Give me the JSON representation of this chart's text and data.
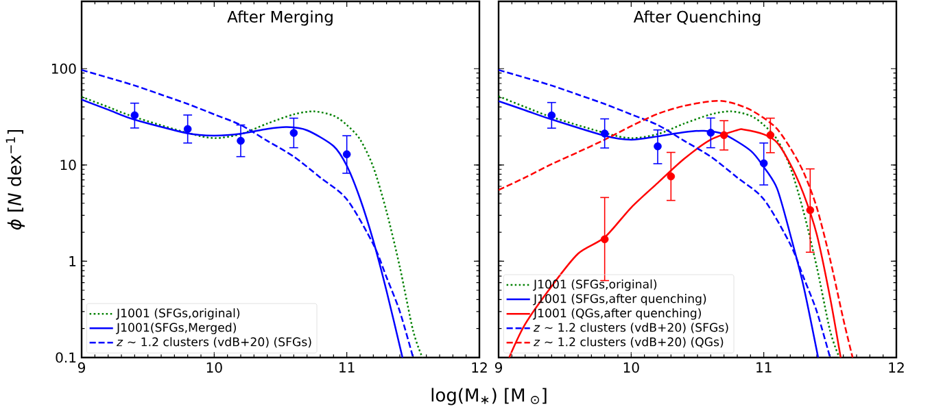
{
  "chart_data": [
    {
      "type": "line",
      "title": "After Merging",
      "xlabel": "log(M$_{∗}$) [M$_{ ⊙}$]",
      "ylabel": "*ϕ* [*N* dex$^{−1}$]",
      "xlim": [
        9,
        12
      ],
      "ylim": [
        0.1,
        500
      ],
      "xticks": [
        9,
        10,
        11,
        12
      ],
      "yticks": [
        0.1,
        1,
        10,
        100
      ],
      "log": "y",
      "legend": "bottom left",
      "series": [
        {
          "name": "J1001 (SFGs,original)",
          "color": "#008000",
          "line_style": "dotted",
          "x": [
            9.0,
            9.2,
            9.4,
            9.8,
            10.0,
            10.2,
            10.4,
            10.6,
            10.75,
            10.9,
            11.0,
            11.1,
            11.2,
            11.3,
            11.4,
            11.5,
            11.57
          ],
          "values": [
            51,
            40,
            31.4,
            21.5,
            19,
            20.9,
            26.9,
            33.5,
            36,
            32.5,
            26,
            18.4,
            9.5,
            3.27,
            0.87,
            0.19,
            0.1
          ]
        },
        {
          "name": "J1001(SFGs,Merged)",
          "color": "#0000ff",
          "line_style": "solid",
          "x": [
            9.0,
            9.2,
            9.4,
            9.8,
            10.0,
            10.2,
            10.4,
            10.55,
            10.7,
            10.9,
            11.0,
            11.1,
            11.2,
            11.3,
            11.42
          ],
          "values": [
            47.7,
            37.5,
            29.5,
            21.3,
            20.2,
            21.1,
            23.7,
            24.7,
            22.9,
            15.7,
            9.8,
            4.47,
            1.63,
            0.49,
            0.1
          ]
        },
        {
          "name": "*z* ∼ 1.2 clusters (vdB+20) (SFGs)",
          "color": "#0000ff",
          "line_style": "dashed",
          "x": [
            9.0,
            9.2,
            9.4,
            9.6,
            9.8,
            10.0,
            10.2,
            10.4,
            10.6,
            10.8,
            11.0,
            11.2,
            11.3,
            11.4,
            11.5
          ],
          "values": [
            97,
            80.7,
            66.8,
            53.7,
            43,
            33.5,
            26,
            17.8,
            12.2,
            7.4,
            4.4,
            1.5,
            0.68,
            0.3,
            0.1
          ]
        },
        {
          "type": "scatter",
          "color": "#0000ff",
          "marker": "circle",
          "x": [
            9.4,
            9.8,
            10.2,
            10.6,
            11.0
          ],
          "values": [
            32.8,
            23.6,
            17.8,
            21.5,
            12.9
          ],
          "errors": [
            [
              24.2,
              43.8
            ],
            [
              16.9,
              33
            ],
            [
              12.2,
              26
            ],
            [
              15.1,
              30.6
            ],
            [
              8.2,
              20.1
            ]
          ]
        }
      ]
    },
    {
      "type": "line",
      "title": "After Quenching",
      "xlim": [
        9,
        12
      ],
      "ylim": [
        0.1,
        500
      ],
      "xticks": [
        9,
        10,
        11,
        12
      ],
      "yticks": [
        0.1,
        1,
        10,
        100
      ],
      "log": "y",
      "legend": "bottom left",
      "tick_labels": "x",
      "series": [
        {
          "name": "J1001 (SFGs,original)",
          "color": "#008000",
          "line_style": "dotted",
          "x": [
            9.0,
            9.2,
            9.4,
            9.8,
            10.0,
            10.2,
            10.4,
            10.6,
            10.75,
            10.9,
            11.0,
            11.1,
            11.2,
            11.3,
            11.4,
            11.5,
            11.57
          ],
          "values": [
            51.7,
            40,
            31.4,
            21.5,
            19,
            20.9,
            26.9,
            33.5,
            36,
            32.5,
            26,
            18.4,
            9.5,
            3.27,
            0.87,
            0.19,
            0.1
          ]
        },
        {
          "name": "J1001 (SFGs,after quenching)",
          "color": "#0000ff",
          "line_style": "solid",
          "x": [
            9.0,
            9.2,
            9.4,
            9.8,
            10.0,
            10.2,
            10.4,
            10.55,
            10.7,
            10.9,
            11.0,
            11.1,
            11.2,
            11.3,
            11.41
          ],
          "values": [
            45.9,
            37,
            29.7,
            20.1,
            18.3,
            19.8,
            21.9,
            22.6,
            20.8,
            14.1,
            9.5,
            5.7,
            1.89,
            0.55,
            0.1
          ]
        },
        {
          "name": "J1001 (QGs,after quenching)",
          "color": "#ff0000",
          "line_style": "solid",
          "x": [
            9.08,
            9.2,
            9.4,
            9.6,
            9.8,
            10.0,
            10.2,
            10.4,
            10.6,
            10.8,
            10.85,
            11.0,
            11.1,
            11.2,
            11.3,
            11.4,
            11.5,
            11.58
          ],
          "values": [
            0.1,
            0.222,
            0.55,
            1.2,
            1.77,
            3.61,
            6.5,
            11.6,
            18.3,
            23,
            23.3,
            20.8,
            17.1,
            10.2,
            5,
            1.89,
            0.42,
            0.1
          ]
        },
        {
          "name": "*z* ∼ 1.2 clusters (vdB+20) (SFGs)",
          "color": "#0000ff",
          "line_style": "dashed",
          "x": [
            9.0,
            9.2,
            9.4,
            9.6,
            9.8,
            10.0,
            10.2,
            10.4,
            10.6,
            10.8,
            11.0,
            11.2,
            11.3,
            11.4,
            11.5
          ],
          "values": [
            97,
            80.7,
            66.8,
            53.7,
            43,
            33.5,
            26,
            17.8,
            12.2,
            7.4,
            4.4,
            1.5,
            0.68,
            0.3,
            0.1
          ]
        },
        {
          "name": "*z* ∼ 1.2 clusters (vdB+20) (QGs)",
          "color": "#ff0000",
          "line_style": "dashed",
          "x": [
            9.0,
            9.2,
            9.4,
            9.6,
            9.8,
            10.0,
            10.2,
            10.4,
            10.6,
            10.7,
            10.8,
            10.9,
            11.0,
            11.1,
            11.2,
            11.3,
            11.4,
            11.5,
            11.6,
            11.67
          ],
          "values": [
            5.5,
            7.4,
            10.2,
            13.6,
            18.3,
            25.3,
            33.9,
            41.1,
            45.9,
            45.9,
            42.5,
            37.3,
            30.7,
            23.7,
            15,
            8.4,
            3.6,
            1.05,
            0.25,
            0.1
          ]
        },
        {
          "type": "scatter",
          "color": "#0000ff",
          "marker": "circle",
          "x": [
            9.4,
            9.8,
            10.2,
            10.6,
            11.0
          ],
          "values": [
            32.7,
            21.2,
            15.6,
            21.6,
            10.4
          ],
          "errors": [
            [
              24.1,
              44.5
            ],
            [
              15,
              30.1
            ],
            [
              10.3,
              23.1
            ],
            [
              15.1,
              30.7
            ],
            [
              6.2,
              16.9
            ]
          ]
        },
        {
          "type": "scatter",
          "color": "#ff0000",
          "marker": "circle",
          "x": [
            9.8,
            10.3,
            10.7,
            11.05,
            11.35
          ],
          "values": [
            1.69,
            7.6,
            20.4,
            20.4,
            3.39
          ],
          "errors": [
            [
              0.63,
              4.59
            ],
            [
              4.28,
              13.5
            ],
            [
              14.3,
              28.8
            ],
            [
              13.4,
              30.6
            ],
            [
              1.24,
              9.1
            ]
          ]
        }
      ]
    }
  ]
}
